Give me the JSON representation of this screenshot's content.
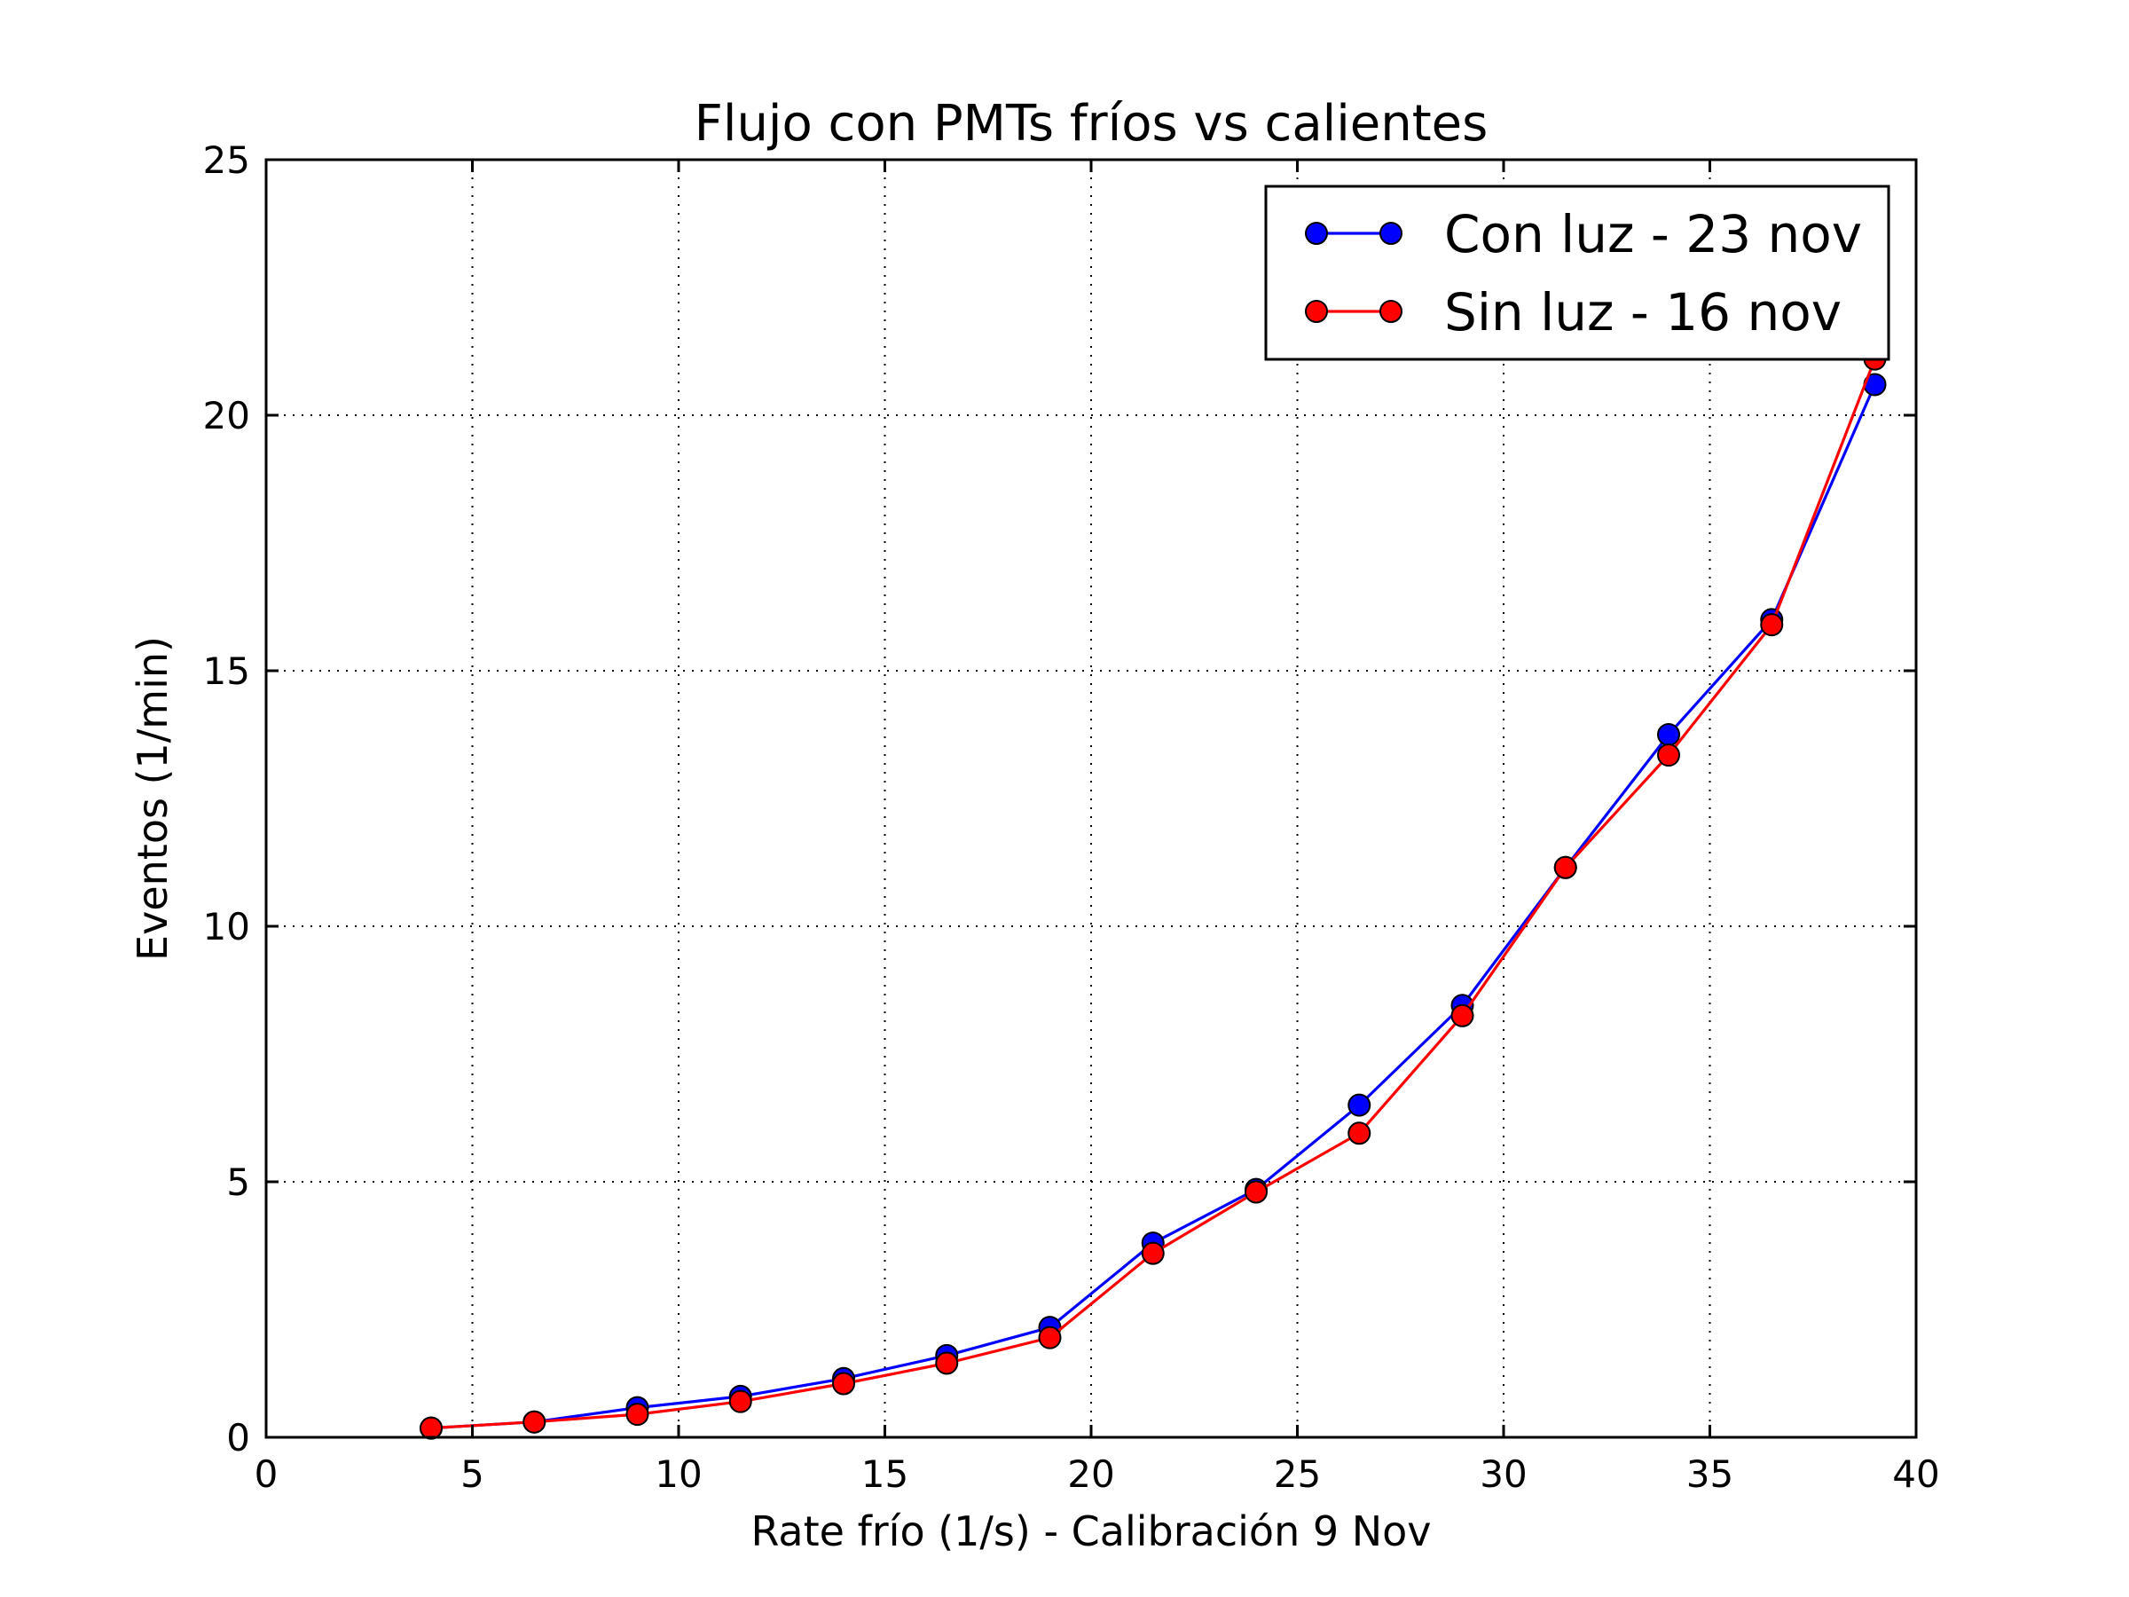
{
  "chart_data": {
    "type": "line",
    "title": "Flujo con PMTs fríos vs calientes",
    "xlabel": "Rate frío (1/s) - Calibración 9 Nov",
    "ylabel": "Eventos (1/min)",
    "xlim": [
      0,
      40
    ],
    "ylim": [
      0,
      25
    ],
    "xticks": [
      0,
      5,
      10,
      15,
      20,
      25,
      30,
      35,
      40
    ],
    "yticks": [
      0,
      5,
      10,
      15,
      20,
      25
    ],
    "grid": true,
    "legend_position": "top-right",
    "x": [
      4,
      6.5,
      9,
      11.5,
      14,
      16.5,
      19,
      21.5,
      24,
      26.5,
      29,
      31.5,
      34,
      36.5,
      39
    ],
    "series": [
      {
        "name": "Con luz - 23 nov",
        "color": "#0000ff",
        "marker": "circle",
        "values": [
          0.18,
          0.3,
          0.58,
          0.8,
          1.15,
          1.6,
          2.15,
          3.8,
          4.85,
          6.5,
          8.45,
          11.15,
          13.75,
          16.0,
          20.6
        ]
      },
      {
        "name": "Sin luz - 16 nov",
        "color": "#ff0000",
        "marker": "circle",
        "values": [
          0.18,
          0.3,
          0.45,
          0.7,
          1.05,
          1.45,
          1.95,
          3.6,
          4.8,
          5.95,
          8.25,
          11.15,
          13.35,
          15.9,
          21.1
        ]
      }
    ]
  }
}
